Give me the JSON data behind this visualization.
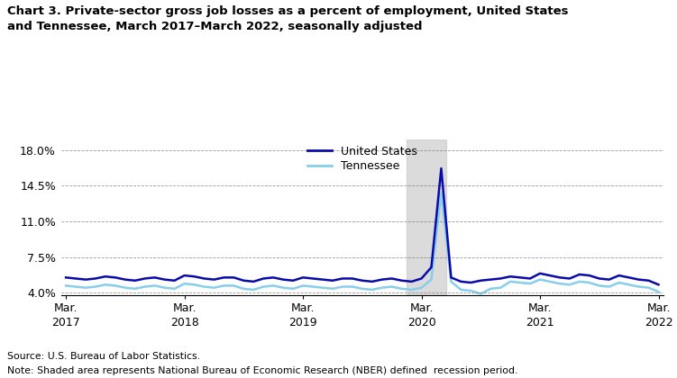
{
  "title_line1": "Chart 3. Private-sector gross job losses as a percent of employment, United States",
  "title_line2": "and Tennessee, March 2017–March 2022, seasonally adjusted",
  "source": "Source: U.S. Bureau of Labor Statistics.",
  "note": "Note: Shaded area represents National Bureau of Economic Research (NBER) defined  recession period.",
  "us_color": "#0a0aaa",
  "tn_color": "#87CEEB",
  "recession_color": "#CCCCCC",
  "recession_alpha": 0.7,
  "recession_start": 34.5,
  "recession_end": 38.5,
  "ylim": [
    3.8,
    19.0
  ],
  "yticks": [
    4.0,
    7.5,
    11.0,
    14.5,
    18.0
  ],
  "ytick_labels": [
    "4.0%",
    "7.5%",
    "11.0%",
    "14.5%",
    "18.0%"
  ],
  "xtick_positions": [
    0,
    12,
    24,
    36,
    48,
    60
  ],
  "xtick_labels": [
    "Mar.\n2017",
    "Mar.\n2018",
    "Mar.\n2019",
    "Mar.\n2020",
    "Mar.\n2021",
    "Mar.\n2022"
  ],
  "us_data": [
    5.5,
    5.4,
    5.3,
    5.4,
    5.6,
    5.5,
    5.3,
    5.2,
    5.4,
    5.5,
    5.3,
    5.2,
    5.7,
    5.6,
    5.4,
    5.3,
    5.5,
    5.5,
    5.2,
    5.1,
    5.4,
    5.5,
    5.3,
    5.2,
    5.5,
    5.4,
    5.3,
    5.2,
    5.4,
    5.4,
    5.2,
    5.1,
    5.3,
    5.4,
    5.2,
    5.1,
    5.4,
    6.5,
    16.2,
    5.5,
    5.1,
    5.0,
    5.2,
    5.3,
    5.4,
    5.6,
    5.5,
    5.4,
    5.9,
    5.7,
    5.5,
    5.4,
    5.8,
    5.7,
    5.4,
    5.3,
    5.7,
    5.5,
    5.3,
    5.2,
    4.8
  ],
  "tn_data": [
    4.7,
    4.6,
    4.5,
    4.6,
    4.8,
    4.7,
    4.5,
    4.4,
    4.6,
    4.7,
    4.5,
    4.4,
    4.9,
    4.8,
    4.6,
    4.5,
    4.7,
    4.7,
    4.4,
    4.3,
    4.6,
    4.7,
    4.5,
    4.4,
    4.7,
    4.6,
    4.5,
    4.4,
    4.6,
    4.6,
    4.4,
    4.3,
    4.5,
    4.6,
    4.4,
    4.3,
    4.5,
    5.3,
    13.8,
    5.1,
    4.3,
    4.2,
    3.9,
    4.4,
    4.5,
    5.1,
    5.0,
    4.9,
    5.3,
    5.1,
    4.9,
    4.8,
    5.1,
    5.0,
    4.7,
    4.6,
    5.0,
    4.8,
    4.6,
    4.5,
    4.1
  ]
}
